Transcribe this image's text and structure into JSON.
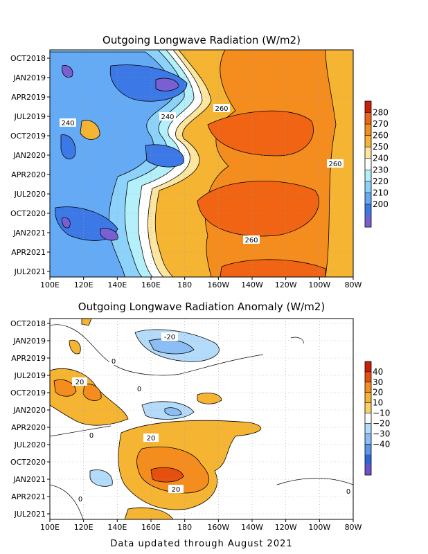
{
  "footer": "Data updated through August 2021",
  "chart_data": [
    {
      "type": "heatmap",
      "title": "Outgoing Longwave Radiation (W/m2)",
      "x_ticks": [
        "100E",
        "120E",
        "140E",
        "160E",
        "180",
        "160W",
        "140W",
        "120W",
        "100W",
        "80W"
      ],
      "y_ticks": [
        "OCT2018",
        "JAN2019",
        "APR2019",
        "JUL2019",
        "OCT2019",
        "JAN2020",
        "APR2020",
        "JUL2020",
        "OCT2020",
        "JAN2021",
        "APR2021",
        "JUL2021"
      ],
      "colorbar": {
        "labels": [
          "280",
          "270",
          "260",
          "250",
          "240",
          "230",
          "220",
          "210",
          "200"
        ],
        "colors": [
          "#c81e0a",
          "#f06414",
          "#f58c1e",
          "#f5b432",
          "#fde6a0",
          "#ffffff",
          "#b4f0fa",
          "#8cd2fa",
          "#64aaf5",
          "#3c78e6",
          "#7860d2"
        ]
      },
      "contour_labels": [
        "240",
        "240",
        "260",
        "260",
        "260"
      ],
      "grid": true
    },
    {
      "type": "heatmap",
      "title": "Outgoing Longwave Radiation Anomaly (W/m2)",
      "x_ticks": [
        "100E",
        "120E",
        "140E",
        "160E",
        "180",
        "160W",
        "140W",
        "120W",
        "100W",
        "80W"
      ],
      "y_ticks": [
        "OCT2018",
        "JAN2019",
        "APR2019",
        "JUL2019",
        "OCT2019",
        "JAN2020",
        "APR2020",
        "JUL2020",
        "OCT2020",
        "JAN2021",
        "APR2021",
        "JUL2021"
      ],
      "colorbar": {
        "labels": [
          "40",
          "30",
          "20",
          "10",
          "−10",
          "−20",
          "−30",
          "−40"
        ],
        "colors": [
          "#c81e0a",
          "#e6500f",
          "#f58c1e",
          "#f5b432",
          "#fad264",
          "#ffffff",
          "#b4dcfa",
          "#8cbef5",
          "#5a96eb",
          "#3264d2",
          "#6e50c8"
        ]
      },
      "contour_labels": [
        "-20",
        "0",
        "20",
        "0",
        "0",
        "20",
        "20",
        "0",
        "0"
      ],
      "grid": true
    }
  ]
}
